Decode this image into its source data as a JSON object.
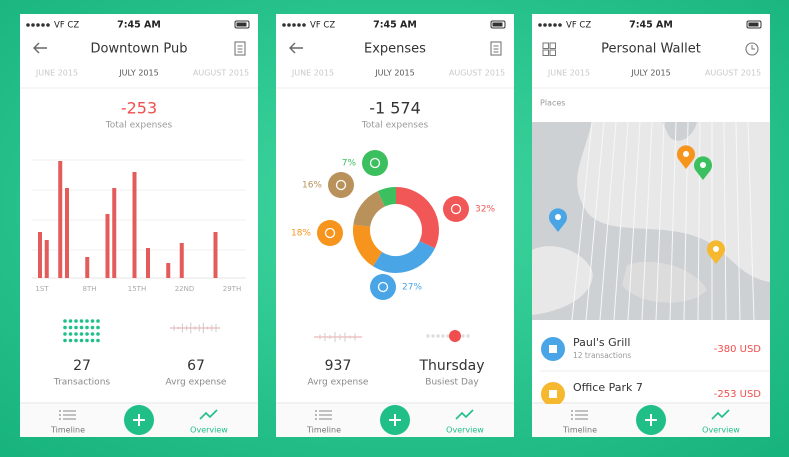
{
  "screens": [
    {
      "status": {
        "carrier": "VF CZ",
        "time": "7:45 AM"
      },
      "title": "Downtown Pub",
      "months": [
        "JUNE 2015",
        "JULY 2015",
        "AUGUST 2015"
      ],
      "total": {
        "amount": "-253",
        "label": "Total expenses"
      },
      "daily_chart": {
        "days": [
          1,
          2,
          4,
          5,
          8,
          11,
          12,
          15,
          17,
          20,
          22,
          27
        ],
        "values": [
          46,
          38,
          117,
          90,
          21,
          64,
          90,
          106,
          30,
          15,
          35,
          46
        ],
        "x_labels": [
          "1ST",
          "8TH",
          "15TH",
          "22ND",
          "29TH"
        ]
      },
      "stats": [
        {
          "value": "27",
          "label": "Transactions"
        },
        {
          "value": "67",
          "label": "Avrg expense"
        }
      ],
      "tabs": [
        "Timeline",
        "Overview"
      ]
    },
    {
      "status": {
        "carrier": "VF CZ",
        "time": "7:45 AM"
      },
      "title": "Expenses",
      "months": [
        "JUNE 2015",
        "JULY 2015",
        "AUGUST 2015"
      ],
      "total": {
        "amount": "-1 574",
        "label": "Total expenses"
      },
      "donut": {
        "values": [
          32,
          27,
          18,
          16,
          7
        ],
        "value_labels": [
          "32%",
          "27%",
          "18%",
          "16%",
          "7%"
        ],
        "colors": [
          "#f25757",
          "#4aa5e6",
          "#f7941d",
          "#b8925a",
          "#3cbf5e"
        ]
      },
      "stats": [
        {
          "value": "937",
          "label": "Avrg expense"
        },
        {
          "value": "Thursday",
          "label": "Busiest Day"
        }
      ],
      "tabs": [
        "Timeline",
        "Overview"
      ]
    },
    {
      "status": {
        "carrier": "VF CZ",
        "time": "7:45 AM"
      },
      "title": "Personal Wallet",
      "months": [
        "JUNE 2015",
        "JULY 2015",
        "AUGUST 2015"
      ],
      "section": "Places",
      "places": [
        {
          "name": "Paul's Grill",
          "detail": "12 transactions",
          "amount": "-380 USD"
        },
        {
          "name": "Office Park 7",
          "amount": "-253 USD"
        }
      ],
      "tabs": [
        "Timeline",
        "Overview"
      ]
    }
  ]
}
